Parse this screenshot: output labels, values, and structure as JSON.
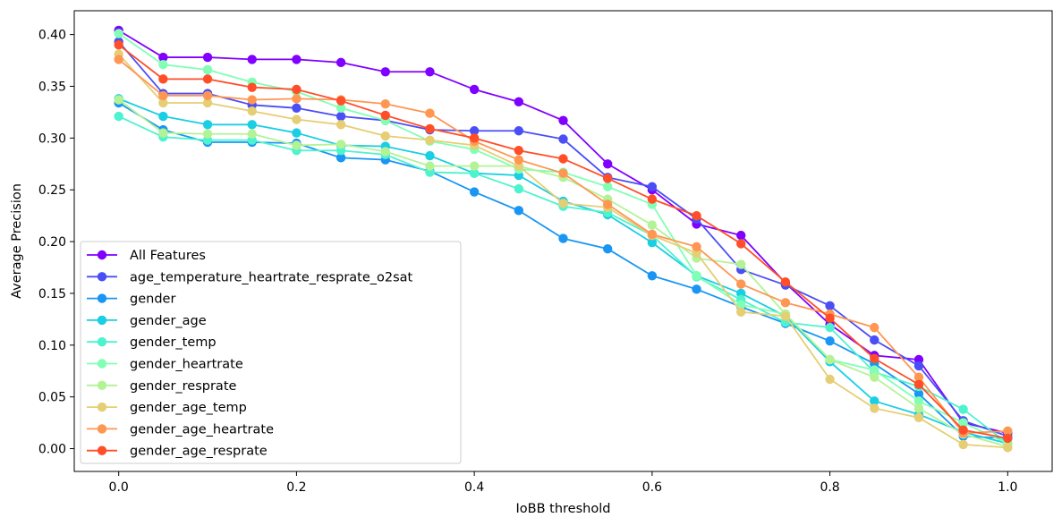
{
  "chart_data": {
    "type": "line",
    "title": "",
    "xlabel": "IoBB threshold",
    "ylabel": "Average Precision",
    "xlim": [
      -0.05,
      1.05
    ],
    "ylim": [
      -0.022,
      0.423
    ],
    "xticks": [
      0.0,
      0.2,
      0.4,
      0.6,
      0.8,
      1.0
    ],
    "xtick_labels": [
      "0.0",
      "0.2",
      "0.4",
      "0.6",
      "0.8",
      "1.0"
    ],
    "yticks": [
      0.0,
      0.05,
      0.1,
      0.15,
      0.2,
      0.25,
      0.3,
      0.35,
      0.4
    ],
    "ytick_labels": [
      "0.00",
      "0.05",
      "0.10",
      "0.15",
      "0.20",
      "0.25",
      "0.30",
      "0.35",
      "0.40"
    ],
    "grid": false,
    "legend_position": "lower-left",
    "x": [
      0.0,
      0.05,
      0.1,
      0.15,
      0.2,
      0.25,
      0.3,
      0.35,
      0.4,
      0.45,
      0.5,
      0.55,
      0.6,
      0.65,
      0.7,
      0.75,
      0.8,
      0.85,
      0.9,
      0.95,
      1.0
    ],
    "series": [
      {
        "name": "All Features",
        "color": "#8000ff",
        "values": [
          0.404,
          0.378,
          0.378,
          0.376,
          0.376,
          0.373,
          0.364,
          0.364,
          0.347,
          0.335,
          0.317,
          0.275,
          0.25,
          0.217,
          0.206,
          0.16,
          0.12,
          0.09,
          0.086,
          0.025,
          0.015
        ]
      },
      {
        "name": "age_temperature_heartrate_resprate_o2sat",
        "color": "#4a4ef5",
        "values": [
          0.393,
          0.343,
          0.343,
          0.332,
          0.329,
          0.321,
          0.317,
          0.308,
          0.307,
          0.307,
          0.299,
          0.262,
          0.253,
          0.222,
          0.173,
          0.158,
          0.138,
          0.105,
          0.08,
          0.027,
          0.012
        ]
      },
      {
        "name": "gender",
        "color": "#1996f3",
        "values": [
          0.334,
          0.308,
          0.296,
          0.296,
          0.295,
          0.281,
          0.279,
          0.268,
          0.248,
          0.23,
          0.203,
          0.193,
          0.167,
          0.154,
          0.137,
          0.121,
          0.104,
          0.082,
          0.053,
          0.012,
          0.01
        ]
      },
      {
        "name": "gender_age",
        "color": "#1acee3",
        "values": [
          0.338,
          0.321,
          0.313,
          0.313,
          0.305,
          0.293,
          0.292,
          0.283,
          0.266,
          0.264,
          0.239,
          0.226,
          0.199,
          0.167,
          0.15,
          0.128,
          0.084,
          0.046,
          0.033,
          0.016,
          0.005
        ]
      },
      {
        "name": "gender_temp",
        "color": "#4df3ce",
        "values": [
          0.321,
          0.301,
          0.298,
          0.298,
          0.288,
          0.288,
          0.284,
          0.267,
          0.266,
          0.251,
          0.234,
          0.228,
          0.206,
          0.166,
          0.144,
          0.122,
          0.117,
          0.074,
          0.06,
          0.038,
          0.005
        ]
      },
      {
        "name": "gender_heartrate",
        "color": "#81ffb4",
        "values": [
          0.401,
          0.371,
          0.366,
          0.354,
          0.345,
          0.329,
          0.317,
          0.297,
          0.289,
          0.27,
          0.267,
          0.253,
          0.236,
          0.167,
          0.139,
          0.13,
          0.086,
          0.076,
          0.046,
          0.025,
          0.005
        ]
      },
      {
        "name": "gender_resprate",
        "color": "#b3f396",
        "values": [
          0.337,
          0.305,
          0.304,
          0.304,
          0.293,
          0.294,
          0.287,
          0.273,
          0.273,
          0.273,
          0.262,
          0.241,
          0.216,
          0.184,
          0.178,
          0.13,
          0.086,
          0.069,
          0.039,
          0.014,
          0.002
        ]
      },
      {
        "name": "gender_age_temp",
        "color": "#e6ce74",
        "values": [
          0.381,
          0.334,
          0.334,
          0.326,
          0.318,
          0.313,
          0.302,
          0.298,
          0.293,
          0.273,
          0.237,
          0.233,
          0.206,
          0.189,
          0.132,
          0.128,
          0.067,
          0.039,
          0.03,
          0.004,
          0.001
        ]
      },
      {
        "name": "gender_age_heartrate",
        "color": "#ff9652",
        "values": [
          0.376,
          0.341,
          0.341,
          0.337,
          0.338,
          0.337,
          0.333,
          0.324,
          0.297,
          0.279,
          0.266,
          0.236,
          0.207,
          0.195,
          0.159,
          0.141,
          0.13,
          0.117,
          0.069,
          0.015,
          0.017
        ]
      },
      {
        "name": "gender_age_resprate",
        "color": "#ff4e28",
        "values": [
          0.39,
          0.357,
          0.357,
          0.349,
          0.347,
          0.336,
          0.322,
          0.309,
          0.3,
          0.288,
          0.28,
          0.261,
          0.241,
          0.225,
          0.198,
          0.161,
          0.126,
          0.087,
          0.062,
          0.018,
          0.01
        ]
      }
    ]
  }
}
